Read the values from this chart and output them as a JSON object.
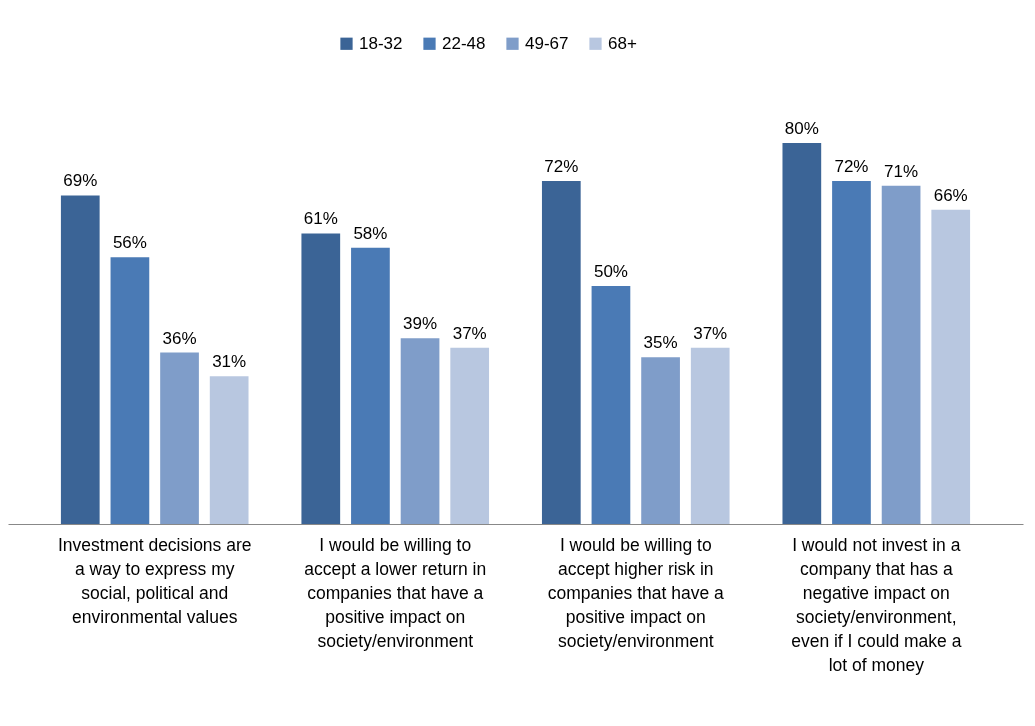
{
  "chart_data": {
    "type": "bar",
    "categories": [
      "Investment decisions are a way to express my social, political and environmental values",
      "I would be willing to accept a lower return in companies that have a positive impact on society/environment",
      "I would be willing to accept higher risk in companies that have a positive impact on society/environment",
      "I would not invest in a company that has a negative impact on society/environment, even if I could make a lot of money"
    ],
    "series": [
      {
        "name": "18-32",
        "color": "#3b6496",
        "values": [
          69,
          61,
          72,
          80
        ],
        "value_labels": [
          "69%",
          "61%",
          "72%",
          "80%"
        ]
      },
      {
        "name": "22-48",
        "color": "#4a7ab5",
        "values": [
          56,
          58,
          50,
          72
        ],
        "value_labels": [
          "56%",
          "58%",
          "50%",
          "72%"
        ]
      },
      {
        "name": "49-67",
        "color": "#7f9dc9",
        "values": [
          36,
          39,
          35,
          71
        ],
        "value_labels": [
          "36%",
          "39%",
          "35%",
          "71%"
        ]
      },
      {
        "name": "68+",
        "color": "#b8c7e0",
        "values": [
          31,
          37,
          37,
          66
        ],
        "value_labels": [
          "31%",
          "37%",
          "37%",
          "66%"
        ]
      }
    ],
    "legend": "top",
    "grid": false
  }
}
